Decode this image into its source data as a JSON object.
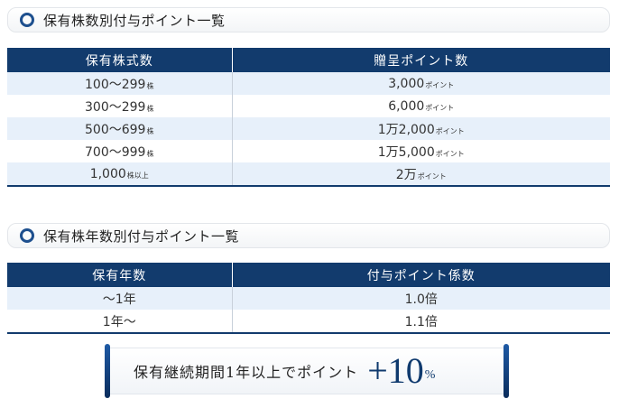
{
  "section1": {
    "title": "保有株数別付与ポイント一覧",
    "headers": [
      "保有株式数",
      "贈呈ポイント数"
    ],
    "rows": [
      {
        "shares": "100〜299",
        "shares_unit": "株",
        "points": "3,000",
        "points_unit": "ポイント"
      },
      {
        "shares": "300〜299",
        "shares_unit": "株",
        "points": "6,000",
        "points_unit": "ポイント"
      },
      {
        "shares": "500〜699",
        "shares_unit": "株",
        "points": "1万2,000",
        "points_unit": "ポイント"
      },
      {
        "shares": "700〜999",
        "shares_unit": "株",
        "points": "1万5,000",
        "points_unit": "ポイント"
      },
      {
        "shares": "1,000",
        "shares_unit": "株以上",
        "points": "2万",
        "points_unit": "ポイント"
      }
    ]
  },
  "section2": {
    "title": "保有株年数別付与ポイント一覧",
    "headers": [
      "保有年数",
      "付与ポイント係数"
    ],
    "rows": [
      {
        "years": "〜1年",
        "factor": "1.0倍"
      },
      {
        "years": "1年〜",
        "factor": "1.1倍"
      }
    ]
  },
  "banner": {
    "text": "保有継続期間1年以上でポイント",
    "plus": "+",
    "value": "10",
    "percent": "%"
  },
  "colors": {
    "header_navy": "#123b6d",
    "row_stripe": "#e7f0fa",
    "accent_blue": "#1d4f8e"
  }
}
